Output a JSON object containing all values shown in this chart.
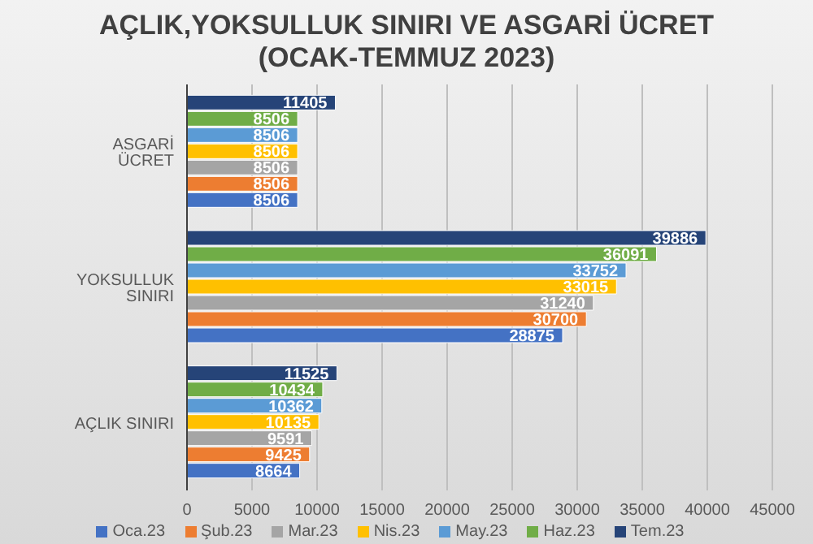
{
  "chart_data": {
    "type": "bar",
    "orientation": "horizontal",
    "title": "AÇLIK,YOKSULLUK SINIRI VE ASGARİ ÜCRET (OCAK-TEMMUZ 2023)",
    "categories": [
      "ASGARİ ÜCRET",
      "YOKSULLUK SINIRI",
      "AÇLIK SINIRI"
    ],
    "series": [
      {
        "name": "Oca.23",
        "color": "#4472c4",
        "values": [
          8506,
          28875,
          8664
        ]
      },
      {
        "name": "Şub.23",
        "color": "#ed7d31",
        "values": [
          8506,
          30700,
          9425
        ]
      },
      {
        "name": "Mar.23",
        "color": "#a5a5a5",
        "values": [
          8506,
          31240,
          9591
        ]
      },
      {
        "name": "Nis.23",
        "color": "#ffc000",
        "values": [
          8506,
          33015,
          10135
        ]
      },
      {
        "name": "May.23",
        "color": "#5b9bd5",
        "values": [
          8506,
          33752,
          10362
        ]
      },
      {
        "name": "Haz.23",
        "color": "#70ad47",
        "values": [
          8506,
          36091,
          10434
        ]
      },
      {
        "name": "Tem.23",
        "color": "#264478",
        "values": [
          11405,
          39886,
          11525
        ]
      }
    ],
    "xlim": [
      0,
      45000
    ],
    "xticks": [
      0,
      5000,
      10000,
      15000,
      20000,
      25000,
      30000,
      35000,
      40000,
      45000
    ],
    "grid": "x",
    "legend": "bottom",
    "data_labels": true
  }
}
